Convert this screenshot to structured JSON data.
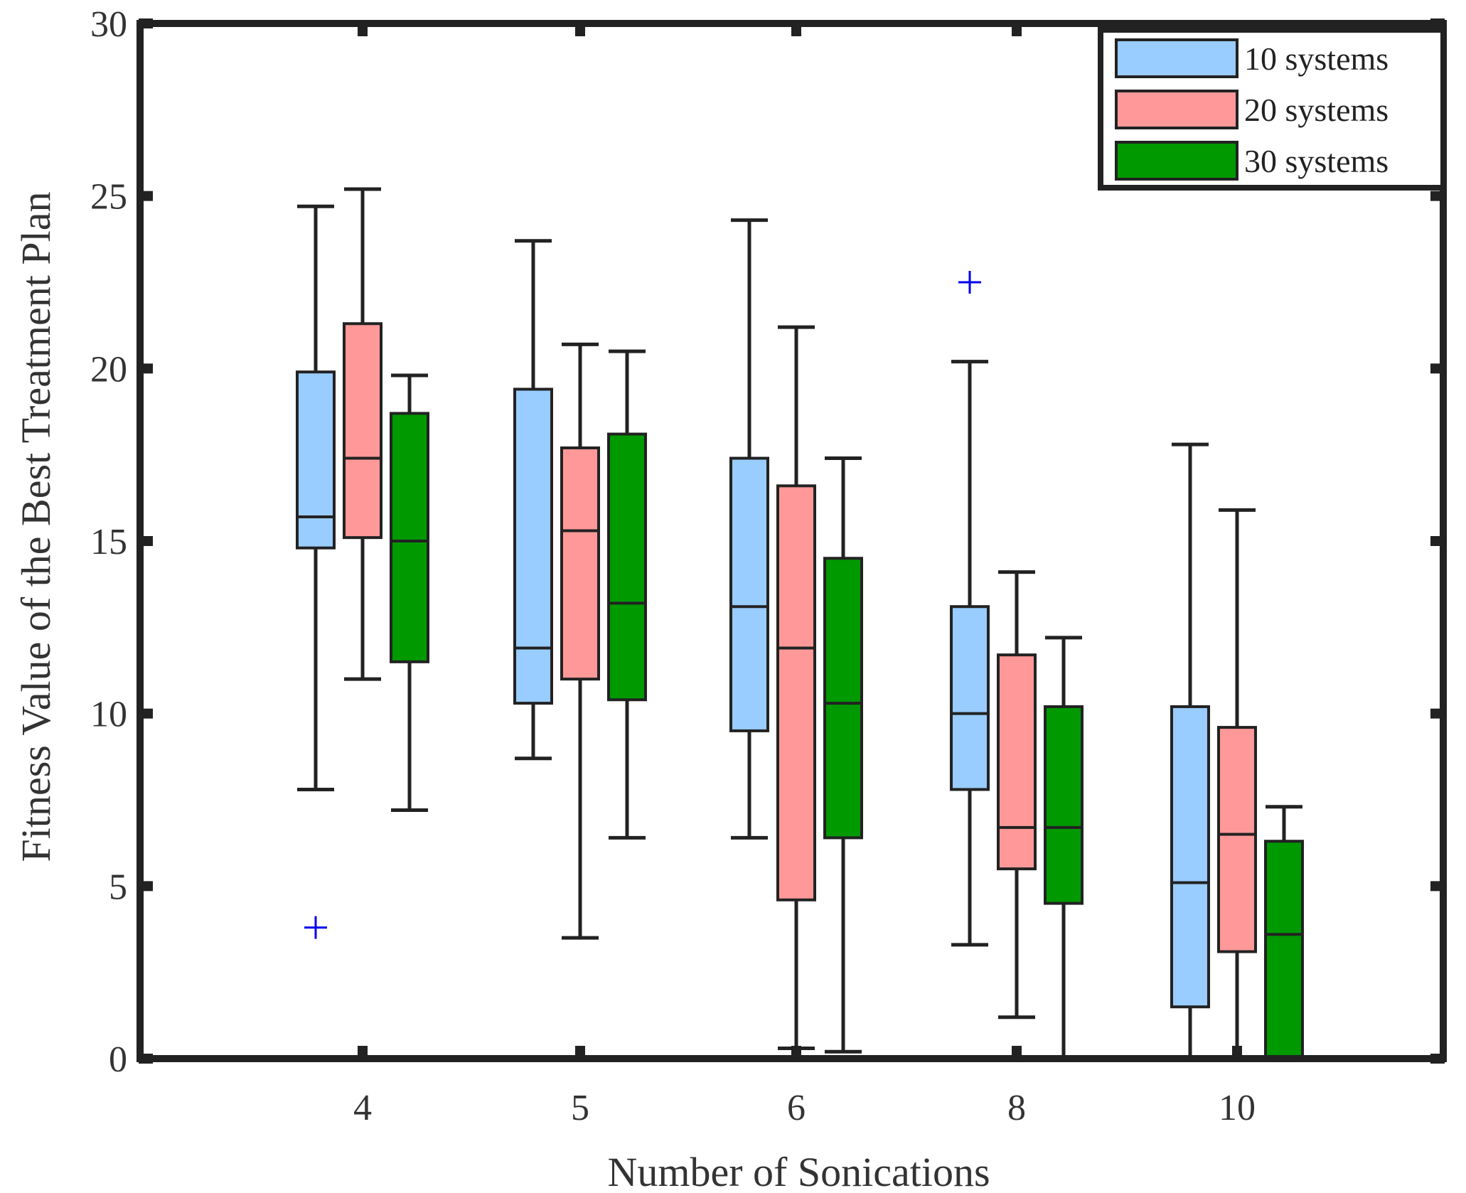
{
  "chart_data": {
    "type": "box",
    "title": "",
    "xlabel": "Number of Sonications",
    "ylabel": "Fitness Value of the Best Treatment Plan",
    "categories": [
      "4",
      "5",
      "6",
      "8",
      "10"
    ],
    "ylim": [
      0,
      30
    ],
    "yticks": [
      "0",
      "5",
      "10",
      "15",
      "20",
      "25",
      "30"
    ],
    "grid": false,
    "legend_position": "top-right",
    "series": [
      {
        "name": "10 systems",
        "color": "#99ccff",
        "boxes": [
          {
            "min": 7.8,
            "q1": 14.8,
            "median": 15.7,
            "q3": 19.9,
            "max": 24.7,
            "outliers": [
              3.8
            ]
          },
          {
            "min": 8.7,
            "q1": 10.3,
            "median": 11.9,
            "q3": 19.4,
            "max": 23.7,
            "outliers": []
          },
          {
            "min": 6.4,
            "q1": 9.5,
            "median": 13.1,
            "q3": 17.4,
            "max": 24.3,
            "outliers": []
          },
          {
            "min": 3.3,
            "q1": 7.8,
            "median": 10.0,
            "q3": 13.1,
            "max": 20.2,
            "outliers": [
              22.5
            ]
          },
          {
            "min": 0.0,
            "q1": 1.5,
            "median": 5.1,
            "q3": 10.2,
            "max": 17.8,
            "outliers": []
          }
        ]
      },
      {
        "name": "20 systems",
        "color": "#ff9999",
        "boxes": [
          {
            "min": 11.0,
            "q1": 15.1,
            "median": 17.4,
            "q3": 21.3,
            "max": 25.2,
            "outliers": []
          },
          {
            "min": 3.5,
            "q1": 11.0,
            "median": 15.3,
            "q3": 17.7,
            "max": 20.7,
            "outliers": []
          },
          {
            "min": 0.3,
            "q1": 4.6,
            "median": 11.9,
            "q3": 16.6,
            "max": 21.2,
            "outliers": []
          },
          {
            "min": 1.2,
            "q1": 5.5,
            "median": 6.7,
            "q3": 11.7,
            "max": 14.1,
            "outliers": []
          },
          {
            "min": 0.0,
            "q1": 3.1,
            "median": 6.5,
            "q3": 9.6,
            "max": 15.9,
            "outliers": []
          }
        ]
      },
      {
        "name": "30 systems",
        "color": "#009900",
        "boxes": [
          {
            "min": 7.2,
            "q1": 11.5,
            "median": 15.0,
            "q3": 18.7,
            "max": 19.8,
            "outliers": []
          },
          {
            "min": 6.4,
            "q1": 10.4,
            "median": 13.2,
            "q3": 18.1,
            "max": 20.5,
            "outliers": []
          },
          {
            "min": 0.2,
            "q1": 6.4,
            "median": 10.3,
            "q3": 14.5,
            "max": 17.4,
            "outliers": []
          },
          {
            "min": 0.0,
            "q1": 4.5,
            "median": 6.7,
            "q3": 10.2,
            "max": 12.2,
            "outliers": []
          },
          {
            "min": 0.0,
            "q1": 0.0,
            "median": 3.6,
            "q3": 6.3,
            "max": 7.3,
            "outliers": []
          }
        ]
      }
    ]
  }
}
